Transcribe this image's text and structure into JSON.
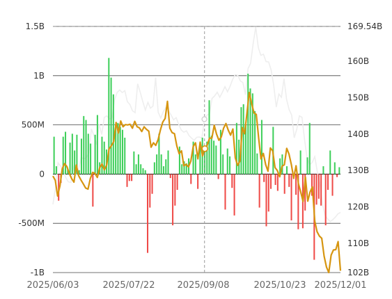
{
  "chart_data": {
    "type": "bar+line",
    "left_axis": {
      "ticks": [
        "1.5B",
        "1B",
        "500M",
        "0",
        "-500M",
        "-1B"
      ],
      "tick_values": [
        1.5,
        1.0,
        0.5,
        0,
        -0.5,
        -1.0
      ],
      "range": [
        -1.0,
        1.5
      ],
      "unit": "B"
    },
    "right_axis": {
      "ticks": [
        "169.54B",
        "160B",
        "150B",
        "140B",
        "130B",
        "120B",
        "110B",
        "102B"
      ],
      "tick_values": [
        169.54,
        160,
        150,
        140,
        130,
        120,
        110,
        102
      ],
      "range": [
        102,
        169.54
      ],
      "unit": "B"
    },
    "x_axis": {
      "ticks": [
        "2025/06/03",
        "2025/07/22",
        "2025/09/08",
        "2025/10/23",
        "2025/12/01"
      ],
      "start": "2025-06-03",
      "end": "2025-12-04"
    },
    "crosshair_date": "2025-09-08",
    "grid": true,
    "colors": {
      "positive_bar": "#3ecf5a",
      "negative_bar": "#ef4a47",
      "line": "#d69510",
      "ghost_line": "#eeeeee",
      "crosshair": "#999999"
    },
    "bars": [
      0.38,
      0.08,
      -0.27,
      -0.09,
      0.38,
      0.43,
      0.05,
      0.32,
      0.41,
      0.24,
      0.4,
      0.04,
      0.36,
      0.59,
      0.55,
      0.41,
      0.31,
      -0.33,
      0.4,
      0.6,
      0.12,
      0.38,
      0.33,
      0.25,
      1.18,
      0.98,
      0.81,
      0.48,
      0.52,
      0.48,
      0.45,
      0.37,
      -0.13,
      -0.07,
      -0.07,
      0.23,
      0.1,
      0.2,
      0.1,
      0.06,
      0.04,
      -0.8,
      -0.34,
      -0.2,
      0.12,
      0.2,
      0.41,
      0.2,
      0.08,
      0.15,
      0.24,
      -0.04,
      -0.52,
      -0.32,
      -0.16,
      0.28,
      0.1,
      0.13,
      0.11,
      0.16,
      -0.1,
      0.33,
      0.2,
      -0.15,
      0.32,
      0.37,
      0.26,
      0.33,
      0.75,
      0.39,
      0.34,
      0.29,
      -0.05,
      0.45,
      0.2,
      -0.36,
      0.26,
      0.18,
      -0.14,
      -0.42,
      0.52,
      0.35,
      0.68,
      0.71,
      0.52,
      1.02,
      0.87,
      0.82,
      0.64,
      0.21,
      -0.34,
      0.55,
      -0.08,
      -0.53,
      -0.38,
      -0.15,
      0.48,
      -0.11,
      -0.17,
      0.16,
      0.2,
      -0.2,
      0.08,
      -0.13,
      -0.47,
      -0.05,
      -0.21,
      -0.56,
      0.24,
      -0.55,
      -0.37,
      0.17,
      0.52,
      -0.22,
      -0.87,
      -0.31,
      -0.25,
      -0.32,
      0.08,
      -0.52,
      -0.16,
      0.24,
      -0.22,
      0.12,
      -0.03,
      0.07
    ],
    "line_series": [
      128.5,
      127.3,
      123.0,
      125.8,
      130.5,
      131.9,
      131.1,
      129.2,
      127.8,
      126.8,
      131.5,
      128.6,
      127.4,
      126.3,
      125.2,
      124.9,
      127.8,
      129.5,
      129.2,
      128.1,
      130.8,
      131.8,
      130.2,
      131.5,
      135.9,
      136.8,
      137.9,
      143.2,
      140.3,
      143.6,
      142.0,
      142.6,
      142.5,
      142.7,
      141.6,
      143.5,
      142.0,
      141.7,
      140.7,
      142.0,
      141.3,
      140.8,
      136.4,
      137.6,
      136.9,
      138.5,
      141.2,
      143.3,
      144.3,
      149.0,
      141.6,
      140.4,
      140.1,
      136.7,
      134.6,
      135.4,
      131.3,
      131.7,
      131.0,
      132.6,
      136.6,
      137.6,
      133.2,
      137.8,
      134.0,
      136.0,
      137.0,
      138.9,
      138.9,
      142.4,
      140.0,
      138.3,
      139.2,
      141.6,
      142.9,
      141.1,
      139.7,
      141.4,
      133.5,
      131.4,
      132.6,
      141.8,
      140.1,
      145.8,
      151.4,
      148.4,
      145.8,
      145.4,
      138.9,
      133.2,
      134.7,
      131.6,
      129.8,
      136.2,
      135.4,
      130.8,
      130.0,
      128.3,
      131.2,
      131.6,
      136.1,
      134.5,
      131.6,
      127.9,
      131.3,
      126.4,
      124.1,
      121.5,
      128.2,
      121.6,
      124.1,
      125.5,
      116.1,
      113.2,
      112.0,
      111.4,
      106.5,
      103.5,
      102.0,
      106.8,
      108.2,
      108.3,
      110.5,
      102.5
    ],
    "ghost_series": [
      120.7,
      125.4,
      132.1,
      131.2,
      130.1,
      128.1,
      126.9,
      126.7,
      130.9,
      128.9,
      130.3,
      133.6,
      133.2,
      133.5,
      134.8,
      141.4,
      139.5,
      137.1,
      142.7,
      139.9,
      144.6,
      145.0,
      144.2,
      144.4,
      149.4,
      151.4,
      152.1,
      151.4,
      151.9,
      148.9,
      148.1,
      146.4,
      145.9,
      153.8,
      151.5,
      148.9,
      146.6,
      148.7,
      147.1,
      147.7,
      155.5,
      146.0,
      144.4,
      146.2,
      147.3,
      146.5,
      145.3,
      143.9,
      144.5,
      142.6,
      141.1,
      140.5,
      140.9,
      139.6,
      138.9,
      138.3,
      139.1,
      139.2,
      138.9,
      144.1,
      145.2,
      145.6,
      149.8,
      150.5,
      151.5,
      150.1,
      151.5,
      153.0,
      151.6,
      153.1,
      155.0,
      156.3,
      156.1,
      154.6,
      154.1,
      150.8,
      158.0,
      159.4,
      164.8,
      169.4,
      163.7,
      161.6,
      161.9,
      159.9,
      159.8,
      157.6,
      153.4,
      147.4,
      151.0,
      150.1,
      155.2,
      149.5,
      146.7,
      145.2,
      139.0,
      141.4,
      145.0,
      144.6,
      138.5,
      133.4,
      131.6,
      132.2,
      133.8,
      129.6,
      126.3,
      120.7,
      117.7,
      116.7,
      116.0,
      116.5,
      117.2,
      118.1,
      118.5
    ]
  }
}
